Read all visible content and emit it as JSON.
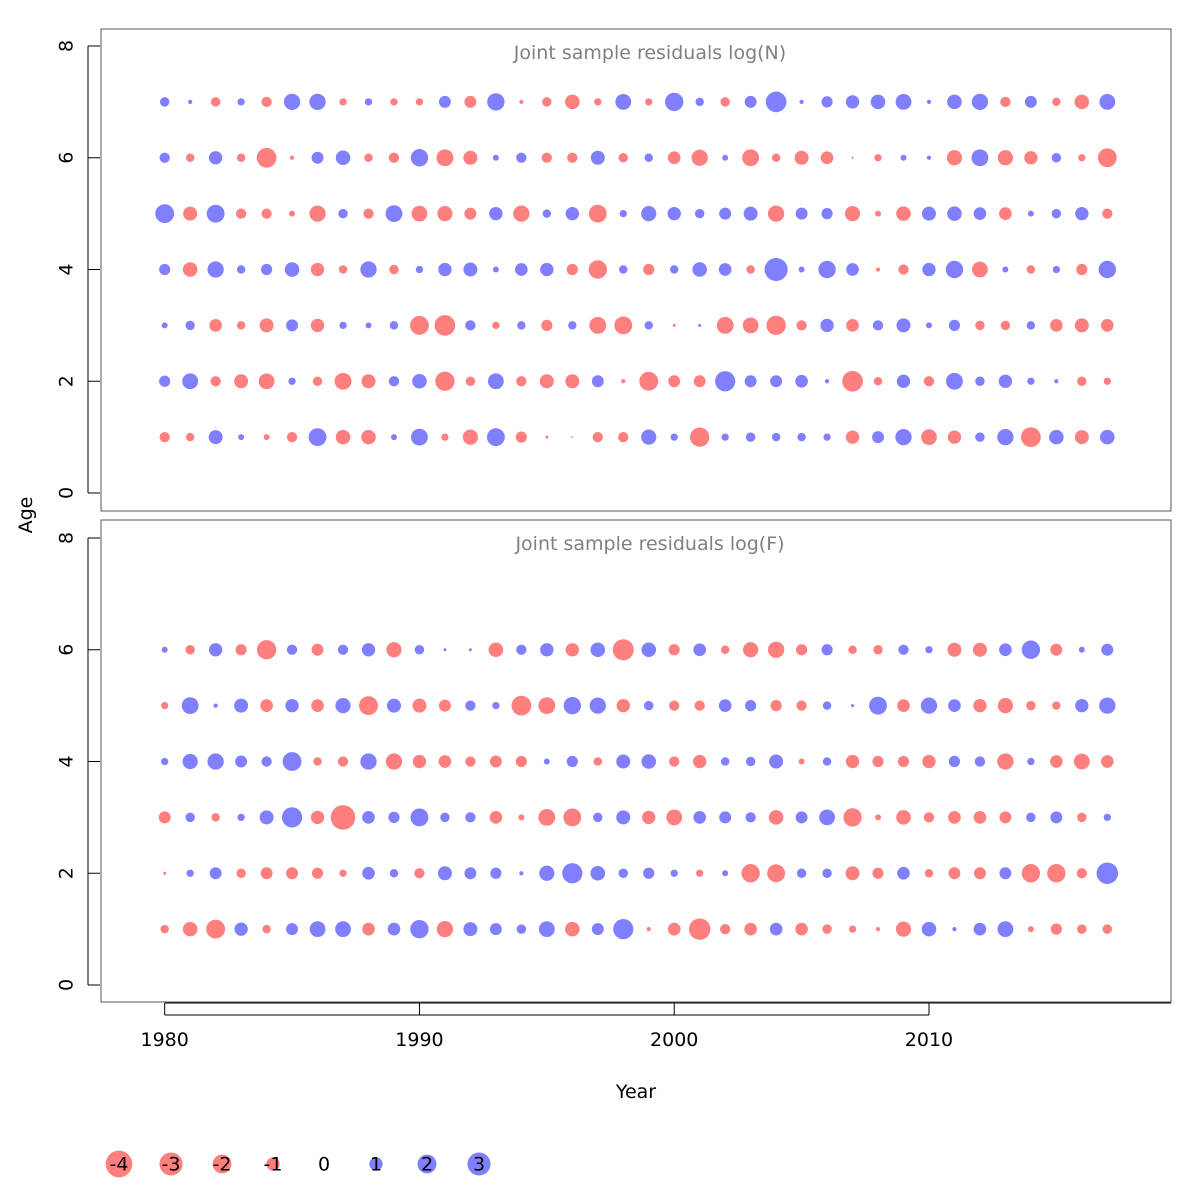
{
  "chart_data": {
    "type": "scatter",
    "subtype": "bubble",
    "xlabel": "Year",
    "ylabel": "Age",
    "xlim": [
      1977.5,
      2019.5
    ],
    "ylim": [
      0,
      8
    ],
    "x_ticks": [
      1980,
      1990,
      2000,
      2010
    ],
    "y_ticks": [
      0,
      2,
      4,
      6,
      8
    ],
    "years": [
      1980,
      1981,
      1982,
      1983,
      1984,
      1985,
      1986,
      1987,
      1988,
      1989,
      1990,
      1991,
      1992,
      1993,
      1994,
      1995,
      1996,
      1997,
      1998,
      1999,
      2000,
      2001,
      2002,
      2003,
      2004,
      2005,
      2006,
      2007,
      2008,
      2009,
      2010,
      2011,
      2012,
      2013,
      2014,
      2015,
      2016,
      2017
    ],
    "colors": {
      "negative": "#ff0000",
      "positive": "#0000ff",
      "opacity": 0.5
    },
    "panels": [
      {
        "title": "Joint sample residuals log(N)",
        "ages": [
          1,
          2,
          3,
          4,
          5,
          6,
          7
        ],
        "residuals": [
          [
            -0.6,
            -0.4,
            1.1,
            0.2,
            -0.2,
            -0.6,
            1.8,
            -1.2,
            -1.2,
            0.2,
            1.6,
            -0.3,
            -1.3,
            1.8,
            -0.7,
            -0.05,
            -0.02,
            -0.6,
            -0.6,
            1.3,
            0.3,
            -2.1,
            0.3,
            0.5,
            0.4,
            0.4,
            0.3,
            -1.0,
            0.8,
            1.5,
            -1.4,
            -1.0,
            0.5,
            1.5,
            -2.2,
            1.2,
            -1.1,
            1.2
          ],
          [
            0.7,
            1.4,
            -0.6,
            -1.1,
            -1.4,
            0.3,
            -0.5,
            -1.6,
            -1.1,
            0.6,
            1.2,
            -2.1,
            -0.5,
            1.4,
            -0.6,
            -1.1,
            -1.1,
            0.8,
            -0.1,
            -2.0,
            -0.8,
            -0.8,
            2.3,
            0.8,
            0.8,
            0.9,
            0.1,
            -2.4,
            -0.4,
            1.0,
            -0.6,
            1.6,
            0.5,
            1.0,
            0.3,
            0.1,
            -0.5,
            -0.3
          ],
          [
            0.2,
            0.5,
            -0.9,
            -0.4,
            -1.1,
            0.8,
            -1.0,
            0.3,
            0.2,
            0.4,
            -2.0,
            -2.4,
            0.6,
            -0.3,
            0.4,
            -0.7,
            0.4,
            -1.6,
            -1.8,
            0.4,
            -0.05,
            0.05,
            -1.6,
            -1.4,
            -2.1,
            -0.6,
            1.0,
            -0.9,
            0.6,
            1.1,
            0.2,
            0.7,
            -0.5,
            -0.5,
            0.4,
            -0.9,
            -1.1,
            -0.9
          ],
          [
            0.7,
            -1.2,
            1.5,
            0.4,
            0.7,
            1.2,
            -1.0,
            -0.4,
            1.5,
            -0.5,
            0.3,
            1.0,
            1.1,
            0.2,
            0.9,
            1.0,
            -0.7,
            -1.9,
            0.4,
            -0.7,
            0.4,
            1.2,
            0.9,
            -0.4,
            3.0,
            0.2,
            1.7,
            0.9,
            -0.1,
            -0.6,
            1.0,
            1.7,
            -1.4,
            0.2,
            -0.4,
            0.3,
            -0.7,
            1.7
          ],
          [
            2.0,
            -1.1,
            1.8,
            -0.6,
            -0.6,
            -0.2,
            -1.5,
            0.5,
            -0.6,
            1.6,
            -1.4,
            -1.3,
            -0.8,
            1.0,
            -1.5,
            0.4,
            1.0,
            -1.8,
            0.3,
            1.3,
            1.0,
            0.5,
            0.8,
            1.1,
            -1.5,
            0.8,
            0.7,
            -1.3,
            -0.2,
            -1.2,
            1.1,
            1.2,
            0.9,
            -0.9,
            0.2,
            0.5,
            1.0,
            -0.6
          ],
          [
            0.6,
            -0.4,
            1.0,
            -0.4,
            -2.2,
            -0.1,
            0.8,
            1.2,
            -0.4,
            -0.6,
            1.7,
            -1.6,
            -1.1,
            0.2,
            0.6,
            -0.6,
            -0.6,
            1.1,
            -0.5,
            0.4,
            -0.9,
            -1.5,
            0.2,
            -1.6,
            -0.4,
            -1.1,
            -0.9,
            0.02,
            -0.3,
            0.2,
            0.1,
            -1.3,
            1.6,
            -1.3,
            -1.0,
            0.5,
            -0.3,
            -2.0
          ],
          [
            0.5,
            0.1,
            -0.5,
            0.3,
            -0.6,
            1.5,
            1.5,
            -0.3,
            0.3,
            -0.3,
            -0.3,
            0.8,
            -0.8,
            1.7,
            -0.1,
            -0.5,
            -1.2,
            -0.3,
            1.4,
            -0.3,
            1.9,
            0.4,
            -0.5,
            0.8,
            2.4,
            0.1,
            0.7,
            1.0,
            1.2,
            1.4,
            0.1,
            1.2,
            1.5,
            -0.6,
            0.8,
            -0.4,
            -1.2,
            1.4
          ]
        ]
      },
      {
        "title": "Joint sample residuals log(F)",
        "ages": [
          1,
          2,
          3,
          4,
          5,
          6
        ],
        "residuals": [
          [
            -0.4,
            -1.2,
            -2.0,
            1.0,
            -0.4,
            0.8,
            1.4,
            1.4,
            -0.9,
            0.9,
            1.9,
            -1.5,
            1.1,
            0.8,
            0.5,
            1.4,
            -1.2,
            0.8,
            2.3,
            -0.1,
            -0.9,
            -2.6,
            -0.6,
            -0.9,
            0.9,
            -0.9,
            -0.5,
            -0.3,
            -0.1,
            -1.3,
            1.2,
            0.1,
            0.9,
            1.4,
            -0.2,
            -0.7,
            -0.5,
            -0.5
          ],
          [
            -0.05,
            0.3,
            0.8,
            -0.5,
            -0.8,
            -0.8,
            -0.7,
            -0.3,
            0.9,
            0.4,
            -0.6,
            1.1,
            0.8,
            0.7,
            0.1,
            1.3,
            2.3,
            1.2,
            0.5,
            0.7,
            0.3,
            -0.3,
            0.2,
            -1.9,
            -1.8,
            0.5,
            0.5,
            -1.1,
            -0.7,
            0.9,
            -0.4,
            -0.8,
            -0.8,
            0.8,
            -1.9,
            -1.9,
            -0.6,
            2.6
          ],
          [
            -0.8,
            0.5,
            -0.4,
            0.3,
            1.1,
            2.3,
            -1.0,
            -3.4,
            0.9,
            0.7,
            1.8,
            0.5,
            0.6,
            -0.9,
            -0.2,
            -1.6,
            -1.8,
            0.5,
            1.1,
            -1.0,
            -1.4,
            0.9,
            0.8,
            0.6,
            -1.2,
            0.8,
            1.4,
            -1.9,
            -0.2,
            -1.2,
            -0.6,
            -0.9,
            -0.9,
            -0.8,
            0.5,
            0.8,
            -0.5,
            0.3
          ],
          [
            0.3,
            1.3,
            1.5,
            0.8,
            0.6,
            2.0,
            -0.4,
            -0.6,
            1.5,
            -1.5,
            -1.0,
            -0.9,
            -0.6,
            -0.8,
            -0.7,
            0.2,
            0.7,
            -0.4,
            1.1,
            1.2,
            -0.6,
            -1.0,
            0.4,
            0.5,
            1.1,
            -0.2,
            0.4,
            -1.0,
            -0.7,
            -0.7,
            -1.0,
            0.7,
            0.6,
            -1.5,
            0.3,
            -0.9,
            -1.4,
            -0.9
          ],
          [
            -0.3,
            1.6,
            0.1,
            1.1,
            -0.9,
            1.0,
            -0.9,
            1.3,
            -2.0,
            1.1,
            -1.1,
            -0.8,
            0.6,
            0.3,
            -2.2,
            -1.6,
            1.7,
            1.5,
            -1.0,
            0.5,
            -0.6,
            -0.6,
            0.9,
            0.7,
            -0.7,
            -0.6,
            0.4,
            0.05,
            1.8,
            -0.9,
            1.5,
            0.9,
            -1.0,
            -1.3,
            -0.5,
            -0.4,
            1.0,
            1.5
          ],
          [
            0.2,
            -0.5,
            1.0,
            -0.7,
            -2.1,
            0.6,
            -0.8,
            0.6,
            1.0,
            -1.3,
            0.5,
            0.05,
            0.05,
            -1.2,
            0.6,
            1.0,
            -1.0,
            1.2,
            -2.5,
            1.2,
            -0.7,
            0.9,
            -0.4,
            -1.3,
            -1.5,
            -0.7,
            0.7,
            -0.4,
            -0.5,
            0.6,
            0.3,
            -1.1,
            -1.1,
            0.9,
            1.9,
            -0.8,
            0.2,
            0.8
          ]
        ]
      }
    ],
    "legend": {
      "placement": "bottom-left",
      "items": [
        {
          "label": "-4",
          "value": -4
        },
        {
          "label": "-3",
          "value": -3
        },
        {
          "label": "-2",
          "value": -2
        },
        {
          "label": "-1",
          "value": -1
        },
        {
          "label": "0",
          "value": 0
        },
        {
          "label": "1",
          "value": 1
        },
        {
          "label": "2",
          "value": 2
        },
        {
          "label": "3",
          "value": 3
        }
      ]
    }
  }
}
